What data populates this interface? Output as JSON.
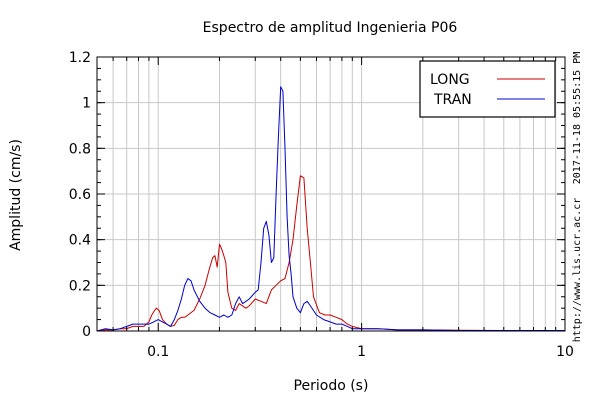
{
  "chart_data": {
    "type": "line",
    "title": "Espectro de amplitud Ingenieria P06",
    "xlabel": "Periodo (s)",
    "ylabel": "Amplitud (cm/s)",
    "x_scale": "log",
    "xlim": [
      0.05,
      10
    ],
    "ylim": [
      0,
      1.2
    ],
    "x_ticks": [
      {
        "value": 0.1,
        "label": "0.1"
      },
      {
        "value": 1,
        "label": "1"
      },
      {
        "value": 10,
        "label": "10"
      }
    ],
    "y_ticks": [
      {
        "value": 0,
        "label": "0"
      },
      {
        "value": 0.2,
        "label": "0.2"
      },
      {
        "value": 0.4,
        "label": "0.4"
      },
      {
        "value": 0.6,
        "label": "0.6"
      },
      {
        "value": 0.8,
        "label": "0.8"
      },
      {
        "value": 1,
        "label": "1"
      },
      {
        "value": 1.2,
        "label": "1.2"
      }
    ],
    "grid": true,
    "legend_position": "top-right",
    "side_labels": {
      "timestamp": "2017-11-18 05:55:15 PM",
      "url": "http://www.lis.ucr.ac.cr"
    },
    "series": [
      {
        "name": "LONG",
        "color": "#cc0000",
        "points": [
          [
            0.05,
            0.0
          ],
          [
            0.055,
            0.005
          ],
          [
            0.06,
            0.005
          ],
          [
            0.065,
            0.01
          ],
          [
            0.07,
            0.01
          ],
          [
            0.075,
            0.02
          ],
          [
            0.08,
            0.02
          ],
          [
            0.085,
            0.02
          ],
          [
            0.09,
            0.04
          ],
          [
            0.093,
            0.07
          ],
          [
            0.096,
            0.09
          ],
          [
            0.098,
            0.1
          ],
          [
            0.101,
            0.09
          ],
          [
            0.105,
            0.05
          ],
          [
            0.11,
            0.03
          ],
          [
            0.115,
            0.02
          ],
          [
            0.12,
            0.025
          ],
          [
            0.125,
            0.05
          ],
          [
            0.13,
            0.06
          ],
          [
            0.135,
            0.06
          ],
          [
            0.14,
            0.07
          ],
          [
            0.15,
            0.09
          ],
          [
            0.16,
            0.14
          ],
          [
            0.17,
            0.2
          ],
          [
            0.178,
            0.27
          ],
          [
            0.185,
            0.32
          ],
          [
            0.19,
            0.33
          ],
          [
            0.195,
            0.28
          ],
          [
            0.2,
            0.38
          ],
          [
            0.205,
            0.36
          ],
          [
            0.21,
            0.33
          ],
          [
            0.215,
            0.3
          ],
          [
            0.22,
            0.17
          ],
          [
            0.23,
            0.1
          ],
          [
            0.24,
            0.09
          ],
          [
            0.25,
            0.12
          ],
          [
            0.26,
            0.11
          ],
          [
            0.27,
            0.1
          ],
          [
            0.28,
            0.11
          ],
          [
            0.3,
            0.14
          ],
          [
            0.32,
            0.13
          ],
          [
            0.34,
            0.12
          ],
          [
            0.36,
            0.18
          ],
          [
            0.38,
            0.2
          ],
          [
            0.4,
            0.22
          ],
          [
            0.42,
            0.23
          ],
          [
            0.44,
            0.3
          ],
          [
            0.46,
            0.4
          ],
          [
            0.48,
            0.55
          ],
          [
            0.5,
            0.68
          ],
          [
            0.52,
            0.67
          ],
          [
            0.54,
            0.45
          ],
          [
            0.56,
            0.3
          ],
          [
            0.58,
            0.15
          ],
          [
            0.62,
            0.08
          ],
          [
            0.66,
            0.07
          ],
          [
            0.7,
            0.07
          ],
          [
            0.75,
            0.06
          ],
          [
            0.8,
            0.05
          ],
          [
            0.85,
            0.03
          ],
          [
            0.9,
            0.02
          ],
          [
            1.0,
            0.01
          ],
          [
            1.2,
            0.01
          ],
          [
            1.5,
            0.005
          ],
          [
            2.0,
            0.005
          ],
          [
            3.0,
            0.003
          ],
          [
            5.0,
            0.002
          ],
          [
            10.0,
            0.002
          ]
        ]
      },
      {
        "name": "TRAN",
        "color": "#0000cc",
        "points": [
          [
            0.05,
            0.0
          ],
          [
            0.055,
            0.01
          ],
          [
            0.06,
            0.005
          ],
          [
            0.065,
            0.01
          ],
          [
            0.07,
            0.02
          ],
          [
            0.075,
            0.03
          ],
          [
            0.08,
            0.03
          ],
          [
            0.085,
            0.03
          ],
          [
            0.09,
            0.03
          ],
          [
            0.095,
            0.04
          ],
          [
            0.1,
            0.05
          ],
          [
            0.105,
            0.04
          ],
          [
            0.11,
            0.03
          ],
          [
            0.115,
            0.02
          ],
          [
            0.12,
            0.05
          ],
          [
            0.125,
            0.09
          ],
          [
            0.13,
            0.14
          ],
          [
            0.135,
            0.2
          ],
          [
            0.14,
            0.23
          ],
          [
            0.145,
            0.22
          ],
          [
            0.15,
            0.18
          ],
          [
            0.16,
            0.13
          ],
          [
            0.17,
            0.1
          ],
          [
            0.18,
            0.08
          ],
          [
            0.19,
            0.07
          ],
          [
            0.2,
            0.06
          ],
          [
            0.21,
            0.07
          ],
          [
            0.22,
            0.06
          ],
          [
            0.23,
            0.07
          ],
          [
            0.24,
            0.12
          ],
          [
            0.25,
            0.15
          ],
          [
            0.26,
            0.12
          ],
          [
            0.27,
            0.13
          ],
          [
            0.28,
            0.14
          ],
          [
            0.3,
            0.17
          ],
          [
            0.31,
            0.18
          ],
          [
            0.32,
            0.3
          ],
          [
            0.33,
            0.45
          ],
          [
            0.34,
            0.48
          ],
          [
            0.35,
            0.42
          ],
          [
            0.36,
            0.3
          ],
          [
            0.37,
            0.32
          ],
          [
            0.38,
            0.6
          ],
          [
            0.39,
            0.85
          ],
          [
            0.4,
            1.07
          ],
          [
            0.41,
            1.05
          ],
          [
            0.42,
            0.8
          ],
          [
            0.43,
            0.5
          ],
          [
            0.44,
            0.33
          ],
          [
            0.45,
            0.25
          ],
          [
            0.46,
            0.15
          ],
          [
            0.48,
            0.1
          ],
          [
            0.5,
            0.08
          ],
          [
            0.52,
            0.12
          ],
          [
            0.54,
            0.13
          ],
          [
            0.56,
            0.11
          ],
          [
            0.6,
            0.07
          ],
          [
            0.65,
            0.05
          ],
          [
            0.7,
            0.04
          ],
          [
            0.75,
            0.03
          ],
          [
            0.8,
            0.03
          ],
          [
            0.85,
            0.02
          ],
          [
            0.9,
            0.01
          ],
          [
            1.0,
            0.01
          ],
          [
            1.2,
            0.01
          ],
          [
            1.5,
            0.005
          ],
          [
            2.0,
            0.005
          ],
          [
            3.0,
            0.002
          ],
          [
            5.0,
            0.002
          ],
          [
            10.0,
            0.002
          ]
        ]
      }
    ]
  }
}
